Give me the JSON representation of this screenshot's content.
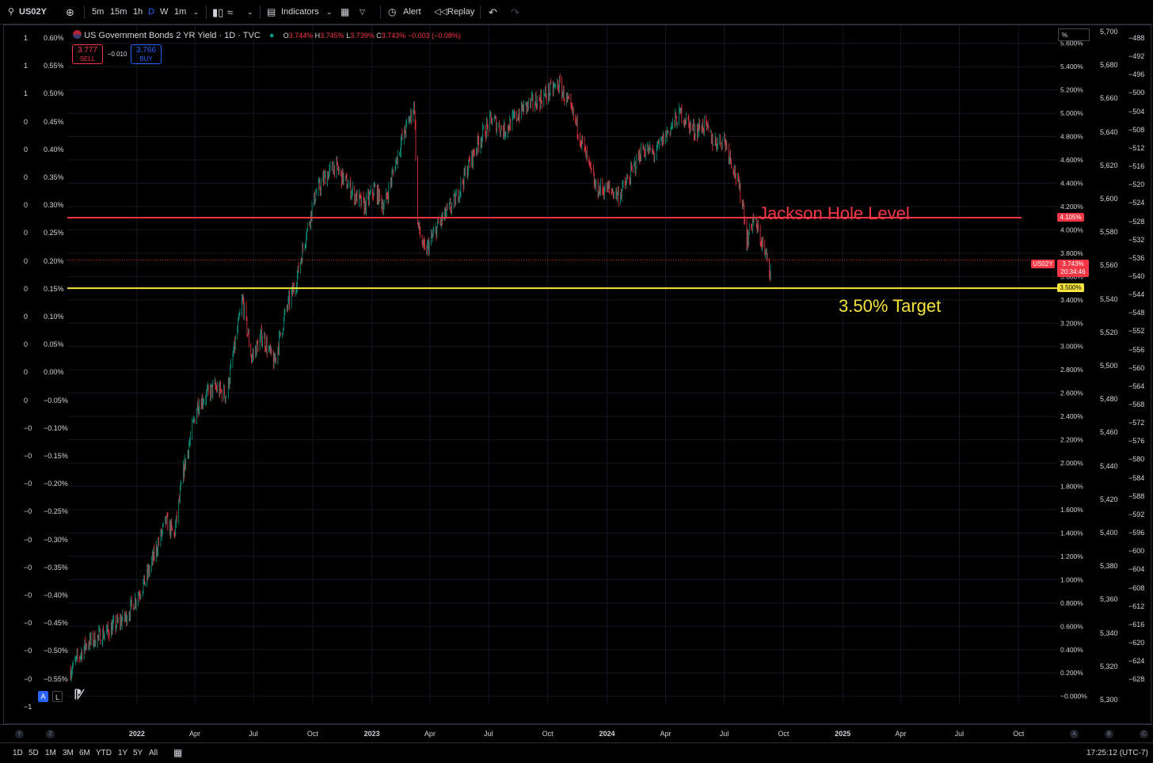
{
  "toolbar": {
    "symbol": "US02Y",
    "intervals": [
      "5m",
      "15m",
      "1h",
      "D",
      "W",
      "1m"
    ],
    "active_interval": "D",
    "indicators_label": "Indicators",
    "alert_label": "Alert",
    "replay_label": "Replay"
  },
  "legend": {
    "title": "US Government Bonds 2 YR Yield · 1D · TVC",
    "o_label": "O",
    "o": "3.744%",
    "h_label": "H",
    "h": "3.745%",
    "l_label": "L",
    "l": "3.739%",
    "c_label": "C",
    "c": "3.743%",
    "change": "−0.003 (−0.08%)",
    "sell_price": "3.777",
    "sell_label": "SELL",
    "spread": "−0.010",
    "buy_price": "3.766",
    "buy_label": "BUY"
  },
  "annotations": {
    "jackson": "Jackson Hole Level",
    "target": "3.50% Target",
    "jackson_value": 4.105,
    "target_value": 3.5,
    "jackson_tag": "4.105%",
    "target_tag": "3.500%",
    "current_symbol": "US02Y",
    "current_price": "3.743%",
    "countdown": "20:34:46"
  },
  "colors": {
    "up": "#089981",
    "down": "#f23645",
    "jackson_line": "#f23645",
    "target_line": "#f5e43b",
    "jackson_text": "#f23645",
    "target_text": "#f5e43b"
  },
  "chart_data": {
    "type": "line",
    "candles": "daily",
    "xlim": [
      "2021-09-15",
      "2025-11-30"
    ],
    "ylim": [
      -0.07,
      5.7
    ],
    "x_tick_labels": [
      {
        "label": "2022",
        "date": "2022-01-01"
      },
      {
        "label": "Apr",
        "date": "2022-04-01"
      },
      {
        "label": "Jul",
        "date": "2022-07-01"
      },
      {
        "label": "Oct",
        "date": "2022-10-01"
      },
      {
        "label": "2023",
        "date": "2023-01-01"
      },
      {
        "label": "Apr",
        "date": "2023-04-01"
      },
      {
        "label": "Jul",
        "date": "2023-07-01"
      },
      {
        "label": "Oct",
        "date": "2023-10-01"
      },
      {
        "label": "2024",
        "date": "2024-01-01"
      },
      {
        "label": "Apr",
        "date": "2024-04-01"
      },
      {
        "label": "Jul",
        "date": "2024-07-01"
      },
      {
        "label": "Oct",
        "date": "2024-10-01"
      },
      {
        "label": "2025",
        "date": "2025-01-01"
      },
      {
        "label": "Apr",
        "date": "2025-04-01"
      },
      {
        "label": "Jul",
        "date": "2025-07-01"
      },
      {
        "label": "Oct",
        "date": "2025-10-01"
      }
    ],
    "y_ticks": [
      "5.600%",
      "5.400%",
      "5.200%",
      "5.000%",
      "4.800%",
      "4.600%",
      "4.400%",
      "4.200%",
      "4.000%",
      "3.800%",
      "3.600%",
      "3.400%",
      "3.200%",
      "3.000%",
      "2.800%",
      "2.600%",
      "2.400%",
      "2.200%",
      "2.000%",
      "1.800%",
      "1.600%",
      "1.400%",
      "1.200%",
      "1.000%",
      "0.800%",
      "0.600%",
      "0.400%",
      "0.200%",
      "−0.000%"
    ],
    "y_tick_values": [
      5.6,
      5.4,
      5.2,
      5.0,
      4.8,
      4.6,
      4.4,
      4.2,
      4.0,
      3.8,
      3.6,
      3.4,
      3.2,
      3.0,
      2.8,
      2.6,
      2.4,
      2.2,
      2.0,
      1.8,
      1.6,
      1.4,
      1.2,
      1.0,
      0.8,
      0.6,
      0.4,
      0.2,
      0.0
    ],
    "series": [
      {
        "x": [
          "2021-09-20",
          "2021-10-15",
          "2021-11-15",
          "2021-12-15",
          "2022-01-15",
          "2022-02-15",
          "2022-02-28",
          "2022-03-15",
          "2022-04-05",
          "2022-05-01",
          "2022-05-20",
          "2022-06-14",
          "2022-06-28",
          "2022-07-15",
          "2022-08-02",
          "2022-08-20",
          "2022-09-05",
          "2022-09-20",
          "2022-10-05",
          "2022-10-20",
          "2022-11-04",
          "2022-11-20",
          "2022-12-05",
          "2022-12-20",
          "2023-01-05",
          "2023-01-20",
          "2023-02-15",
          "2023-03-08",
          "2023-03-13",
          "2023-03-24",
          "2023-04-15",
          "2023-05-10",
          "2023-05-31",
          "2023-06-15",
          "2023-07-06",
          "2023-07-25",
          "2023-08-10",
          "2023-08-25",
          "2023-09-20",
          "2023-10-18",
          "2023-10-31",
          "2023-11-15",
          "2023-12-01",
          "2023-12-15",
          "2024-01-03",
          "2024-01-20",
          "2024-02-05",
          "2024-02-25",
          "2024-03-15",
          "2024-04-05",
          "2024-04-25",
          "2024-05-15",
          "2024-05-31",
          "2024-06-15",
          "2024-07-01",
          "2024-07-15",
          "2024-07-31",
          "2024-08-05",
          "2024-08-15",
          "2024-08-25",
          "2024-09-05",
          "2024-09-11"
        ],
        "values": [
          0.22,
          0.45,
          0.55,
          0.68,
          1.0,
          1.5,
          1.38,
          1.95,
          2.5,
          2.65,
          2.58,
          3.4,
          2.9,
          3.1,
          2.85,
          3.3,
          3.55,
          3.95,
          4.3,
          4.45,
          4.55,
          4.42,
          4.3,
          4.2,
          4.35,
          4.2,
          4.75,
          5.07,
          4.05,
          3.8,
          4.05,
          4.25,
          4.55,
          4.75,
          4.95,
          4.85,
          4.95,
          5.05,
          5.12,
          5.25,
          5.1,
          4.9,
          4.6,
          4.35,
          4.35,
          4.3,
          4.45,
          4.7,
          4.65,
          4.85,
          5.0,
          4.85,
          4.9,
          4.75,
          4.78,
          4.55,
          4.2,
          3.9,
          4.1,
          3.95,
          3.75,
          3.65
        ]
      }
    ]
  }
}
